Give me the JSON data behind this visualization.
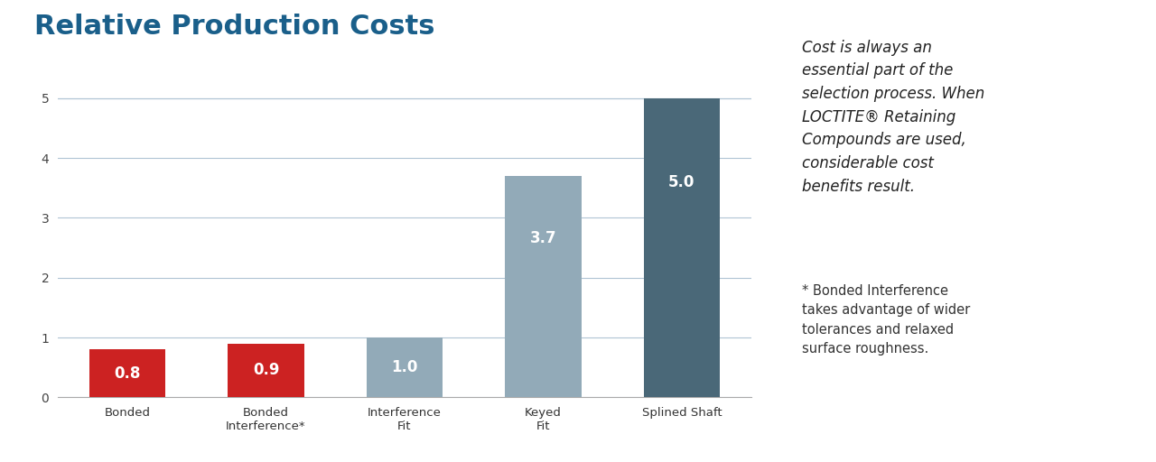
{
  "title": "Relative Production Costs",
  "title_color": "#1a5f8a",
  "title_fontsize": 22,
  "categories": [
    "Bonded",
    "Bonded\nInterference*",
    "Interference\nFit",
    "Keyed\nFit",
    "Splined Shaft"
  ],
  "values": [
    0.8,
    0.9,
    1.0,
    3.7,
    5.0
  ],
  "bar_colors": [
    "#cc2222",
    "#cc2222",
    "#92aab8",
    "#92aab8",
    "#4a6878"
  ],
  "bar_labels": [
    "0.8",
    "0.9",
    "1.0",
    "3.7",
    "5.0"
  ],
  "label_color": "#ffffff",
  "label_fontsize": 12,
  "ylim": [
    0,
    5.25
  ],
  "yticks": [
    0,
    1,
    2,
    3,
    4,
    5
  ],
  "background_color": "#ffffff",
  "grid_color": "#b0c4d4",
  "annotation_box_color": "#d0d8e0",
  "annotation_text1": "Cost is always an\nessential part of the\nselection process. When\nLOCTITE® Retaining\nCompounds are used,\nconsiderable cost\nbenefits result.",
  "annotation_text2": "* Bonded Interference\ntakes advantage of wider\ntolerances and relaxed\nsurface roughness.",
  "annotation_fontsize1": 12,
  "annotation_fontsize2": 10.5,
  "bar_width": 0.55
}
